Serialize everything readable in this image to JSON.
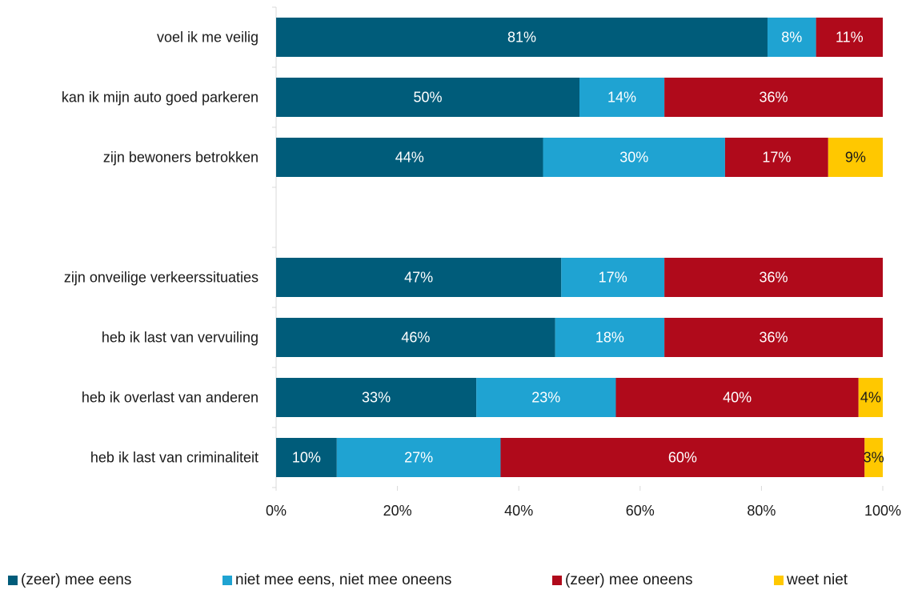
{
  "chart_data": {
    "type": "bar",
    "orientation": "horizontal",
    "stacked": "percent",
    "categories": [
      "voel ik me veilig",
      "kan ik mijn auto goed parkeren",
      "zijn bewoners betrokken",
      "",
      "zijn onveilige verkeerssituaties",
      "heb ik last van vervuiling",
      "heb ik overlast van anderen",
      "heb ik last van criminaliteit"
    ],
    "series": [
      {
        "name": "(zeer) mee eens",
        "color": "#005c7a",
        "label_color": "#ffffff",
        "values": [
          81,
          50,
          44,
          null,
          47,
          46,
          33,
          10
        ]
      },
      {
        "name": "niet mee eens, niet mee oneens",
        "color": "#1fa3d2",
        "label_color": "#ffffff",
        "values": [
          8,
          14,
          30,
          null,
          17,
          18,
          23,
          27
        ]
      },
      {
        "name": "(zeer) mee oneens",
        "color": "#b00a1b",
        "label_color": "#ffffff",
        "values": [
          11,
          36,
          17,
          null,
          36,
          36,
          40,
          60
        ]
      },
      {
        "name": "weet niet",
        "color": "#ffc800",
        "label_color": "#1a1a1a",
        "values": [
          0,
          0,
          9,
          null,
          0,
          0,
          4,
          3
        ]
      }
    ],
    "xlim": [
      0,
      100
    ],
    "xticks": [
      "0%",
      "20%",
      "40%",
      "60%",
      "80%",
      "100%"
    ],
    "value_suffix": "%",
    "grid": false,
    "legend_position": "bottom"
  }
}
